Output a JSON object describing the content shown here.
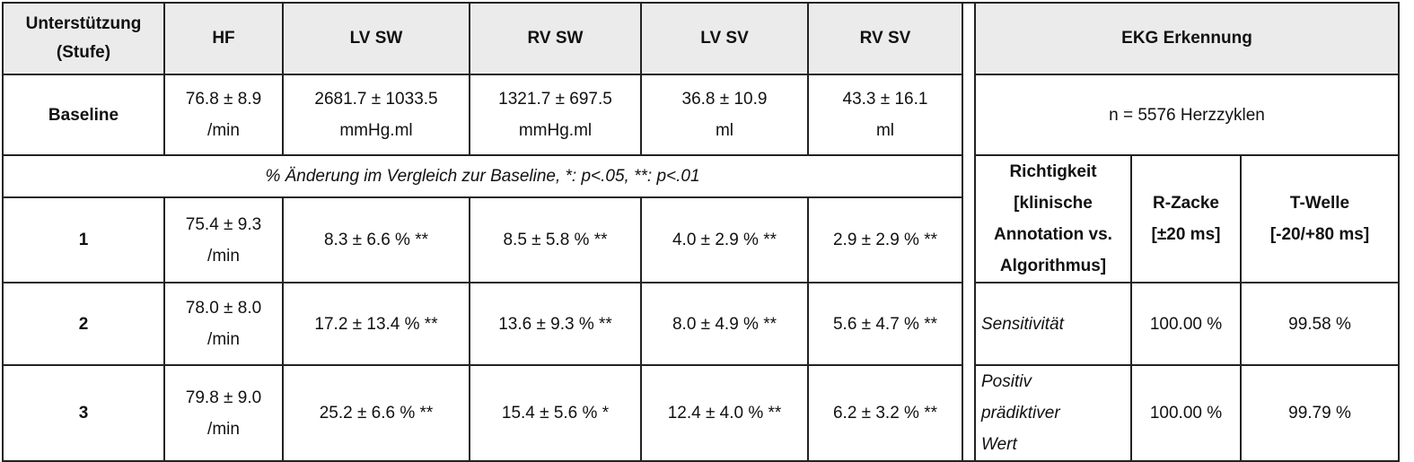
{
  "header": {
    "stufe": [
      "Unterstützung",
      "(Stufe)"
    ],
    "hf": "HF",
    "lv_sw": "LV SW",
    "rv_sw": "RV SW",
    "lv_sv": "LV SV",
    "rv_sv": "RV SV",
    "ekg": "EKG Erkennung"
  },
  "baseline": {
    "label": "Baseline",
    "hf": [
      "76.8 ± 8.9",
      "/min"
    ],
    "lv_sw": [
      "2681.7 ± 1033.5",
      "mmHg.ml"
    ],
    "rv_sw": [
      "1321.7 ± 697.5",
      "mmHg.ml"
    ],
    "lv_sv": [
      "36.8 ± 10.9",
      "ml"
    ],
    "rv_sv": [
      "43.3 ± 16.1",
      "ml"
    ],
    "ekg_n": "n = 5576 Herzzyklen"
  },
  "note": "% Änderung im Vergleich zur Baseline, *: p<.05, **: p<.01",
  "ekg_header": {
    "richtigkeit": [
      "Richtigkeit",
      "[klinische",
      "Annotation vs.",
      "Algorithmus]"
    ],
    "r_zacke": [
      "R-Zacke",
      "[±20 ms]"
    ],
    "t_welle": [
      "T-Welle",
      "[-20/+80 ms]"
    ]
  },
  "rows": [
    {
      "stufe": "1",
      "hf": [
        "75.4 ± 9.3",
        "/min"
      ],
      "lv_sw": "8.3 ± 6.6 % **",
      "rv_sw": "8.5 ± 5.8 % **",
      "lv_sv": "4.0 ± 2.9 % **",
      "rv_sv": "2.9 ± 2.9 % **"
    },
    {
      "stufe": "2",
      "hf": [
        "78.0 ± 8.0",
        "/min"
      ],
      "lv_sw": "17.2 ± 13.4 % **",
      "rv_sw": "13.6 ± 9.3 % **",
      "lv_sv": "8.0 ± 4.9 % **",
      "rv_sv": "5.6 ± 4.7 % **",
      "ekg_label": [
        "Sensitivität"
      ],
      "r_zacke": "100.00 %",
      "t_welle": "99.58 %"
    },
    {
      "stufe": "3",
      "hf": [
        "79.8 ± 9.0",
        "/min"
      ],
      "lv_sw": "25.2 ± 6.6 % **",
      "rv_sw": "15.4 ± 5.6 % *",
      "lv_sv": "12.4 ± 4.0 % **",
      "rv_sv": "6.2 ± 3.2 % **",
      "ekg_label": [
        "Positiv",
        "prädiktiver",
        "Wert"
      ],
      "r_zacke": "100.00 %",
      "t_welle": "99.79 %"
    }
  ]
}
